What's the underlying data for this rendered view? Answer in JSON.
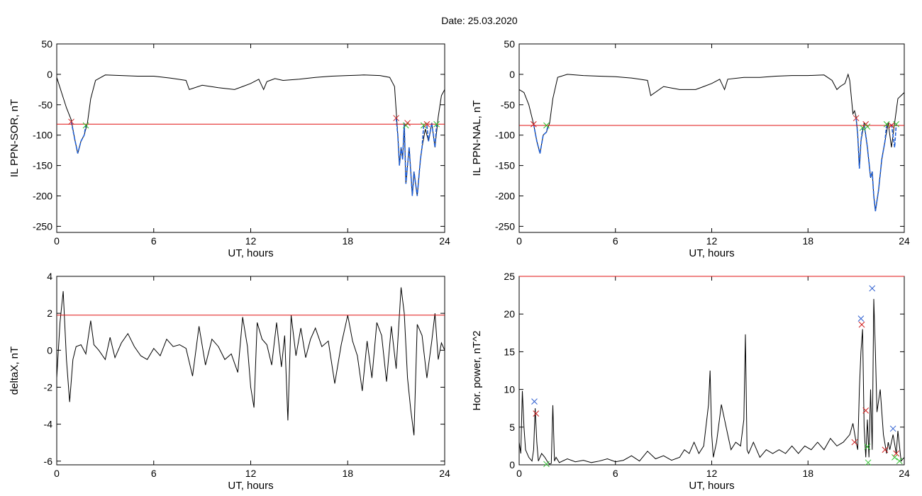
{
  "figure": {
    "title": "Date:  25.03.2020"
  },
  "chart_data": [
    {
      "type": "line",
      "panel": "top-left",
      "ylabel": "IL PPN-SOR, nT",
      "xlabel": "UT, hours",
      "xlim": [
        0,
        24
      ],
      "ylim": [
        -260,
        50
      ],
      "xticks": [
        0,
        6,
        12,
        18,
        24
      ],
      "yticks": [
        50,
        0,
        -50,
        -100,
        -150,
        -200,
        -250
      ],
      "threshold": -82,
      "series": [
        {
          "color": "#000000",
          "x": [
            0,
            0.3,
            0.6,
            0.9,
            1.1,
            1.3,
            1.5,
            1.7,
            1.9,
            2.1,
            2.4,
            3,
            4,
            5,
            6,
            7,
            7.5,
            8,
            8.2,
            9,
            10,
            11,
            11.5,
            12,
            12.5,
            12.8,
            13,
            13.5,
            14,
            15,
            16,
            17,
            18,
            19,
            20,
            20.6,
            20.9,
            21.0,
            21.1,
            21.2,
            21.3,
            21.4,
            21.5,
            21.6,
            21.8,
            22.0,
            22.1,
            22.3,
            22.5,
            22.6,
            22.8,
            23.0,
            23.2,
            23.4,
            23.6,
            23.8,
            24
          ],
          "y": [
            -5,
            -30,
            -55,
            -75,
            -105,
            -130,
            -110,
            -100,
            -80,
            -40,
            -10,
            -1,
            -2,
            -3,
            -3,
            -6,
            -8,
            -10,
            -25,
            -18,
            -22,
            -25,
            -20,
            -15,
            -8,
            -25,
            -12,
            -7,
            -10,
            -8,
            -5,
            -3,
            -2,
            -1,
            -2,
            -5,
            -20,
            -60,
            -100,
            -150,
            -120,
            -140,
            -80,
            -180,
            -120,
            -200,
            -160,
            -200,
            -140,
            -120,
            -90,
            -110,
            -80,
            -120,
            -70,
            -35,
            -25
          ]
        }
      ],
      "segments": [
        {
          "color": "#1f5fd8",
          "x": [
            0.9,
            1.1,
            1.3,
            1.5,
            1.7,
            1.8
          ],
          "y": [
            -78,
            -105,
            -130,
            -110,
            -100,
            -84
          ]
        },
        {
          "color": "#1f5fd8",
          "x": [
            21.0,
            21.1,
            21.2,
            21.3,
            21.4,
            21.5,
            21.6,
            21.8,
            22.0,
            22.1,
            22.3,
            22.5,
            22.6,
            22.7
          ],
          "y": [
            -72,
            -100,
            -150,
            -120,
            -140,
            -80,
            -180,
            -120,
            -200,
            -160,
            -200,
            -140,
            -120,
            -84
          ]
        },
        {
          "color": "#1f5fd8",
          "x": [
            22.9,
            23.0,
            23.2,
            23.4,
            23.5
          ],
          "y": [
            -84,
            -110,
            -80,
            -120,
            -82
          ]
        }
      ],
      "markers": [
        {
          "color": "#d02020",
          "x": 0.9,
          "y": -78
        },
        {
          "color": "#30c030",
          "x": 1.8,
          "y": -84
        },
        {
          "color": "#d02020",
          "x": 21.0,
          "y": -72
        },
        {
          "color": "#30c030",
          "x": 21.6,
          "y": -84
        },
        {
          "color": "#d02020",
          "x": 21.7,
          "y": -80
        },
        {
          "color": "#30c030",
          "x": 22.7,
          "y": -84
        },
        {
          "color": "#d02020",
          "x": 22.9,
          "y": -82
        },
        {
          "color": "#30c030",
          "x": 23.5,
          "y": -82
        }
      ]
    },
    {
      "type": "line",
      "panel": "top-right",
      "ylabel": "IL PPN-NAL, nT",
      "xlabel": "UT, hours",
      "xlim": [
        0,
        24
      ],
      "ylim": [
        -260,
        50
      ],
      "xticks": [
        0,
        6,
        12,
        18,
        24
      ],
      "yticks": [
        50,
        0,
        -50,
        -100,
        -150,
        -200,
        -250
      ],
      "threshold": -84,
      "series": [
        {
          "color": "#000000",
          "x": [
            0,
            0.3,
            0.6,
            0.9,
            1.1,
            1.3,
            1.5,
            1.7,
            1.9,
            2.1,
            2.4,
            3,
            4,
            5,
            6,
            7,
            7.5,
            8,
            8.2,
            9,
            10,
            11,
            11.5,
            12,
            12.5,
            12.8,
            13,
            14,
            15,
            16,
            17,
            18,
            19,
            19.5,
            19.8,
            20,
            20.3,
            20.5,
            20.6,
            20.8,
            20.9,
            21.0,
            21.1,
            21.2,
            21.3,
            21.5,
            21.7,
            21.9,
            22.0,
            22.1,
            22.2,
            22.4,
            22.6,
            22.8,
            23.0,
            23.2,
            23.4,
            23.6,
            24
          ],
          "y": [
            -25,
            -30,
            -50,
            -82,
            -110,
            -130,
            -100,
            -95,
            -80,
            -40,
            -5,
            0,
            -2,
            -3,
            -4,
            -6,
            -8,
            -10,
            -35,
            -20,
            -25,
            -25,
            -20,
            -15,
            -8,
            -25,
            -8,
            -5,
            -5,
            -3,
            -2,
            -2,
            -1,
            -10,
            -25,
            -20,
            -15,
            0,
            -10,
            -65,
            -60,
            -70,
            -100,
            -155,
            -110,
            -80,
            -120,
            -170,
            -160,
            -200,
            -225,
            -190,
            -140,
            -110,
            -80,
            -120,
            -80,
            -40,
            -30
          ]
        }
      ],
      "segments": [
        {
          "color": "#1f5fd8",
          "x": [
            0.9,
            1.1,
            1.3,
            1.5,
            1.7,
            1.8
          ],
          "y": [
            -82,
            -110,
            -130,
            -100,
            -95,
            -84
          ]
        },
        {
          "color": "#1f5fd8",
          "x": [
            21.0,
            21.1,
            21.2,
            21.3,
            21.4
          ],
          "y": [
            -72,
            -100,
            -155,
            -110,
            -88
          ]
        },
        {
          "color": "#1f5fd8",
          "x": [
            21.5,
            21.7,
            21.9,
            22.0,
            22.1,
            22.2,
            22.4,
            22.6,
            22.8,
            22.9
          ],
          "y": [
            -82,
            -120,
            -170,
            -160,
            -200,
            -225,
            -190,
            -140,
            -110,
            -82
          ]
        },
        {
          "color": "#1f5fd8",
          "x": [
            23.2,
            23.4,
            23.5
          ],
          "y": [
            -82,
            -120,
            -82
          ]
        }
      ],
      "markers": [
        {
          "color": "#d02020",
          "x": 0.9,
          "y": -82
        },
        {
          "color": "#30c030",
          "x": 1.7,
          "y": -84
        },
        {
          "color": "#d02020",
          "x": 21.0,
          "y": -72
        },
        {
          "color": "#30c030",
          "x": 21.4,
          "y": -88
        },
        {
          "color": "#d02020",
          "x": 21.6,
          "y": -82
        },
        {
          "color": "#30c030",
          "x": 21.7,
          "y": -86
        },
        {
          "color": "#30c030",
          "x": 22.9,
          "y": -82
        },
        {
          "color": "#d02020",
          "x": 23.2,
          "y": -84
        },
        {
          "color": "#30c030",
          "x": 23.5,
          "y": -82
        }
      ]
    },
    {
      "type": "line",
      "panel": "bottom-left",
      "ylabel": "deltaX, nT",
      "xlabel": "UT, hours",
      "xlim": [
        0,
        24
      ],
      "ylim": [
        -6.2,
        4
      ],
      "xticks": [
        0,
        6,
        12,
        18,
        24
      ],
      "yticks": [
        4,
        2,
        0,
        -2,
        -4,
        -6
      ],
      "threshold": 1.9,
      "series": [
        {
          "color": "#000000",
          "x": [
            0,
            0.2,
            0.4,
            0.6,
            0.8,
            1.0,
            1.2,
            1.5,
            1.8,
            2.1,
            2.3,
            2.6,
            3,
            3.3,
            3.6,
            4,
            4.4,
            4.8,
            5.2,
            5.6,
            6,
            6.4,
            6.8,
            7.2,
            7.6,
            8,
            8.4,
            8.8,
            9.2,
            9.6,
            10,
            10.4,
            10.8,
            11.2,
            11.5,
            11.8,
            12.0,
            12.2,
            12.4,
            12.7,
            13.0,
            13.3,
            13.6,
            13.9,
            14.1,
            14.3,
            14.5,
            14.8,
            15.1,
            15.4,
            15.7,
            16.0,
            16.4,
            16.8,
            17.2,
            17.6,
            18.0,
            18.3,
            18.6,
            18.9,
            19.2,
            19.5,
            19.8,
            20.1,
            20.4,
            20.7,
            21.0,
            21.3,
            21.5,
            21.7,
            21.9,
            22.1,
            22.3,
            22.6,
            22.9,
            23.2,
            23.4,
            23.6,
            23.8,
            24
          ],
          "y": [
            -1.5,
            1.5,
            3.2,
            -0.5,
            -2.8,
            -0.5,
            0.2,
            0.3,
            -0.2,
            1.6,
            0.3,
            0.0,
            -0.5,
            0.7,
            -0.4,
            0.4,
            0.9,
            0.2,
            -0.3,
            -0.5,
            0.1,
            -0.3,
            0.6,
            0.2,
            0.3,
            0.1,
            -1.4,
            1.3,
            -0.8,
            0.6,
            0.2,
            -0.5,
            -0.2,
            -1.2,
            1.8,
            0.2,
            -2.0,
            -3.1,
            1.5,
            0.6,
            0.3,
            -0.8,
            1.5,
            -0.9,
            0.8,
            -3.8,
            1.9,
            -0.3,
            1.2,
            -0.4,
            0.6,
            1.2,
            0.2,
            0.5,
            -1.8,
            0.3,
            1.9,
            0.5,
            -0.3,
            -2.2,
            0.5,
            -1.5,
            1.5,
            0.8,
            -1.7,
            1.3,
            -1.0,
            3.4,
            2.0,
            -1.5,
            -3.2,
            -4.6,
            1.4,
            0.8,
            -1.5,
            0.5,
            2.0,
            -0.5,
            0.4,
            0.0
          ]
        }
      ]
    },
    {
      "type": "line",
      "panel": "bottom-right",
      "ylabel": "Hor. power, nT^2",
      "xlabel": "UT, hours",
      "xlim": [
        0,
        24
      ],
      "ylim": [
        0,
        25
      ],
      "xticks": [
        0,
        6,
        12,
        18,
        24
      ],
      "yticks": [
        25,
        20,
        15,
        10,
        5,
        0
      ],
      "threshold": 25,
      "series": [
        {
          "color": "#000000",
          "x": [
            0,
            0.1,
            0.2,
            0.3,
            0.4,
            0.6,
            0.8,
            0.9,
            1.0,
            1.1,
            1.2,
            1.4,
            1.6,
            1.8,
            1.9,
            2.0,
            2.1,
            2.2,
            2.3,
            2.5,
            3,
            3.5,
            4,
            4.5,
            5,
            5.5,
            6,
            6.5,
            7,
            7.5,
            8,
            8.5,
            9,
            9.5,
            10,
            10.3,
            10.6,
            10.9,
            11.2,
            11.5,
            11.8,
            11.9,
            12.0,
            12.1,
            12.3,
            12.6,
            12.8,
            13.0,
            13.2,
            13.5,
            13.8,
            14.0,
            14.1,
            14.2,
            14.3,
            14.4,
            14.6,
            15.0,
            15.4,
            15.8,
            16.2,
            16.6,
            17.0,
            17.4,
            17.8,
            18.2,
            18.6,
            19.0,
            19.4,
            19.8,
            20.2,
            20.6,
            20.8,
            21.0,
            21.1,
            21.2,
            21.3,
            21.4,
            21.5,
            21.6,
            21.7,
            21.8,
            21.9,
            22.0,
            22.1,
            22.2,
            22.3,
            22.5,
            22.7,
            22.9,
            23.0,
            23.1,
            23.3,
            23.5,
            23.6,
            23.8,
            24
          ],
          "y": [
            3.0,
            1.5,
            9.8,
            5.0,
            2.0,
            1.0,
            0.5,
            2.0,
            7.5,
            3.0,
            0.5,
            1.5,
            1.0,
            0.3,
            0.1,
            0.2,
            7.9,
            0.5,
            1.0,
            0.3,
            0.8,
            0.4,
            0.6,
            0.3,
            0.5,
            0.8,
            0.4,
            0.6,
            1.2,
            0.5,
            1.8,
            0.8,
            1.2,
            0.6,
            1.0,
            2.0,
            1.5,
            3.0,
            1.5,
            2.5,
            8.0,
            12.5,
            4.0,
            1.0,
            3.0,
            8.0,
            6.0,
            4.0,
            2.0,
            3.0,
            2.5,
            6.0,
            17.3,
            2.0,
            1.5,
            2.0,
            3.0,
            1.0,
            2.0,
            1.5,
            2.0,
            1.5,
            2.5,
            1.5,
            2.5,
            2.0,
            3.0,
            2.0,
            3.5,
            2.5,
            3.0,
            4.0,
            5.5,
            3.0,
            2.0,
            10.0,
            15.0,
            18.0,
            5.0,
            1.0,
            6.0,
            1.0,
            10.0,
            2.0,
            22.0,
            15.0,
            7.0,
            10.0,
            4.0,
            1.5,
            3.0,
            2.0,
            4.0,
            1.5,
            4.5,
            0.5,
            1.0
          ]
        }
      ],
      "markers": [
        {
          "color": "#3060d0",
          "x": 0.95,
          "y": 8.4
        },
        {
          "color": "#d02020",
          "x": 1.05,
          "y": 6.8
        },
        {
          "color": "#30c030",
          "x": 1.7,
          "y": 0.1
        },
        {
          "color": "#d02020",
          "x": 20.9,
          "y": 3.0
        },
        {
          "color": "#3060d0",
          "x": 21.3,
          "y": 19.4
        },
        {
          "color": "#d02020",
          "x": 21.35,
          "y": 18.6
        },
        {
          "color": "#d02020",
          "x": 21.6,
          "y": 7.2
        },
        {
          "color": "#30c030",
          "x": 21.7,
          "y": 2.4
        },
        {
          "color": "#30c030",
          "x": 21.75,
          "y": 0.3
        },
        {
          "color": "#3060d0",
          "x": 22.0,
          "y": 23.4
        },
        {
          "color": "#d02020",
          "x": 22.8,
          "y": 2.0
        },
        {
          "color": "#3060d0",
          "x": 23.3,
          "y": 4.8
        },
        {
          "color": "#30c030",
          "x": 23.4,
          "y": 1.0
        },
        {
          "color": "#d02020",
          "x": 23.5,
          "y": 1.5
        },
        {
          "color": "#30c030",
          "x": 23.7,
          "y": 0.5
        }
      ]
    }
  ]
}
